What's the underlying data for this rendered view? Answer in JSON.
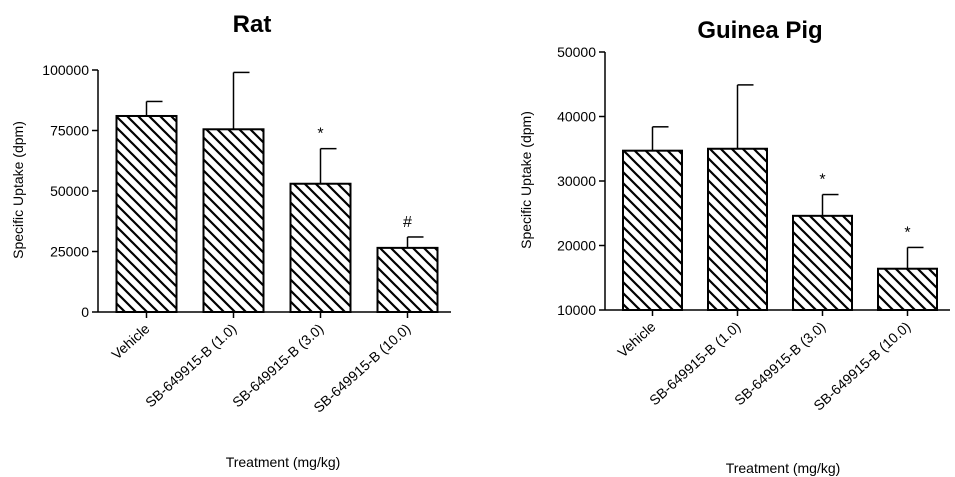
{
  "chart_data": [
    {
      "type": "bar",
      "title": "Rat",
      "xlabel": "Treatment (mg/kg)",
      "ylabel": "Specific Uptake (dpm)",
      "categories": [
        "Vehicle",
        "SB-649915-B (1.0)",
        "SB-649915-B (3.0)",
        "SB-649915-B (10.0)"
      ],
      "values": [
        81000,
        75500,
        53000,
        26500
      ],
      "error": [
        6000,
        23500,
        14500,
        4500
      ],
      "annotations": [
        "",
        "",
        "*",
        "#"
      ],
      "ylim": [
        0,
        100000
      ],
      "yticks": [
        0,
        25000,
        50000,
        75000,
        100000
      ],
      "ytick_labels": [
        "0",
        "25000",
        "50000",
        "75000",
        "100000"
      ],
      "grid": false,
      "pattern": "diagonal-hatch"
    },
    {
      "type": "bar",
      "title": "Guinea Pig",
      "xlabel": "Treatment (mg/kg)",
      "ylabel": "Specific Uptake (dpm)",
      "categories": [
        "Vehicle",
        "SB-649915-B (1.0)",
        "SB-649915-B (3.0)",
        "SB-649915-B (10.0)"
      ],
      "values": [
        34700,
        35000,
        24600,
        16400
      ],
      "error": [
        3700,
        9900,
        3300,
        3300
      ],
      "annotations": [
        "",
        "",
        "*",
        "*"
      ],
      "ylim": [
        10000,
        50000
      ],
      "yticks": [
        10000,
        20000,
        30000,
        40000,
        50000
      ],
      "ytick_labels": [
        "10000",
        "20000",
        "30000",
        "40000",
        "50000"
      ],
      "grid": false,
      "pattern": "diagonal-hatch"
    }
  ]
}
